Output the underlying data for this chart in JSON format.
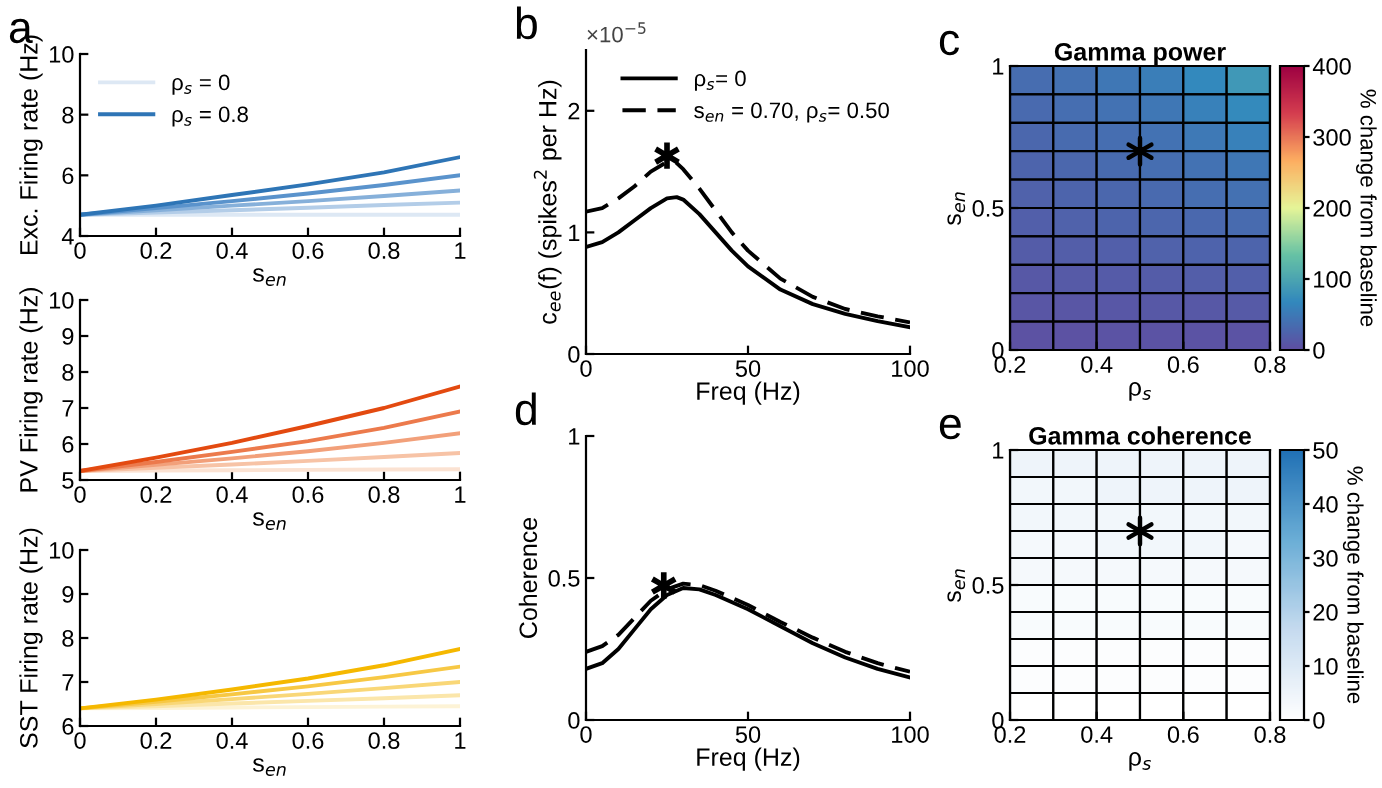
{
  "chart_data": [
    {
      "type": "line",
      "annotations": [
        "a"
      ],
      "xlabel": "s$_{en}$",
      "ylabel": "Exc. Firing rate (Hz)",
      "x": [
        0,
        0.2,
        0.4,
        0.6,
        0.8,
        1
      ],
      "xlim": [
        0,
        1
      ],
      "ylim": [
        4,
        10
      ],
      "xticks": [
        0,
        0.2,
        0.4,
        0.6,
        0.8,
        1
      ],
      "yticks": [
        4,
        6,
        8,
        10
      ],
      "legend": "top left",
      "series": [
        {
          "name": "ρ$_{s}$ = 0",
          "color": "#dde8f4",
          "values": [
            4.7,
            4.7,
            4.7,
            4.7,
            4.7,
            4.7
          ]
        },
        {
          "color": "#b3cde8",
          "values": [
            4.7,
            4.77,
            4.85,
            4.93,
            5.02,
            5.1
          ]
        },
        {
          "color": "#86b0da",
          "values": [
            4.7,
            4.85,
            5.0,
            5.15,
            5.32,
            5.5
          ]
        },
        {
          "color": "#5a93cc",
          "values": [
            4.7,
            4.92,
            5.15,
            5.4,
            5.68,
            6.0
          ]
        },
        {
          "name": "ρ$_{s}$ = 0.8",
          "color": "#2e75b6",
          "values": [
            4.7,
            5.0,
            5.35,
            5.7,
            6.1,
            6.6
          ]
        }
      ]
    },
    {
      "type": "line",
      "xlabel": "s$_{en}$",
      "ylabel": "PV Firing rate (Hz)",
      "x": [
        0,
        0.2,
        0.4,
        0.6,
        0.8,
        1
      ],
      "xlim": [
        0,
        1
      ],
      "ylim": [
        5,
        10
      ],
      "xticks": [
        0,
        0.2,
        0.4,
        0.6,
        0.8,
        1
      ],
      "yticks": [
        5,
        6,
        7,
        8,
        9,
        10
      ],
      "series": [
        {
          "color": "#fbe2d2",
          "values": [
            5.25,
            5.26,
            5.27,
            5.28,
            5.29,
            5.3
          ]
        },
        {
          "color": "#f7c3a6",
          "values": [
            5.25,
            5.34,
            5.43,
            5.53,
            5.64,
            5.75
          ]
        },
        {
          "color": "#f2a07a",
          "values": [
            5.25,
            5.42,
            5.6,
            5.8,
            6.03,
            6.3
          ]
        },
        {
          "color": "#ec7a4c",
          "values": [
            5.25,
            5.5,
            5.78,
            6.08,
            6.45,
            6.9
          ]
        },
        {
          "color": "#e34a10",
          "values": [
            5.25,
            5.62,
            6.03,
            6.5,
            7.0,
            7.6
          ]
        }
      ]
    },
    {
      "type": "line",
      "xlabel": "s$_{en}$",
      "ylabel": "SST Firing rate (Hz)",
      "x": [
        0,
        0.2,
        0.4,
        0.6,
        0.8,
        1
      ],
      "xlim": [
        0,
        1
      ],
      "ylim": [
        6,
        10
      ],
      "xticks": [
        0,
        0.2,
        0.4,
        0.6,
        0.8,
        1
      ],
      "yticks": [
        6,
        7,
        8,
        9,
        10
      ],
      "series": [
        {
          "color": "#fdf3d6",
          "values": [
            6.4,
            6.41,
            6.42,
            6.43,
            6.44,
            6.45
          ]
        },
        {
          "color": "#fbe6aa",
          "values": [
            6.4,
            6.45,
            6.51,
            6.57,
            6.63,
            6.7
          ]
        },
        {
          "color": "#f9d777",
          "values": [
            6.4,
            6.5,
            6.61,
            6.73,
            6.86,
            7.0
          ]
        },
        {
          "color": "#f7c844",
          "values": [
            6.4,
            6.55,
            6.72,
            6.9,
            7.11,
            7.35
          ]
        },
        {
          "color": "#f5b800",
          "values": [
            6.4,
            6.6,
            6.83,
            7.08,
            7.38,
            7.75
          ]
        }
      ]
    },
    {
      "type": "line",
      "annotations": [
        "b",
        "×10$^{−5}$",
        {
          "text": "✱",
          "x": 25,
          "y": 1.6
        }
      ],
      "xlabel": "Freq (Hz)",
      "ylabel": "c$_{ee}$(f) (spikes$^{2}$ per Hz)",
      "x": [
        0,
        5,
        10,
        15,
        20,
        25,
        28,
        30,
        35,
        40,
        45,
        50,
        60,
        70,
        80,
        90,
        100
      ],
      "xlim": [
        0,
        100
      ],
      "ylim": [
        0,
        2.5
      ],
      "xticks": [
        0,
        50,
        100
      ],
      "yticks": [
        0,
        1,
        2
      ],
      "legend": "top right",
      "series": [
        {
          "name": "ρ$_{s}$= 0",
          "color": "#000000",
          "line_style": "solid",
          "values": [
            0.88,
            0.92,
            1.0,
            1.1,
            1.2,
            1.28,
            1.29,
            1.27,
            1.15,
            1.0,
            0.85,
            0.72,
            0.53,
            0.41,
            0.33,
            0.27,
            0.22
          ]
        },
        {
          "name": "s$_{en}$ = 0.70, ρ$_{s}$= 0.50",
          "color": "#000000",
          "line_style": "dashed",
          "values": [
            1.17,
            1.2,
            1.28,
            1.38,
            1.5,
            1.58,
            1.57,
            1.52,
            1.36,
            1.18,
            1.0,
            0.85,
            0.62,
            0.47,
            0.37,
            0.31,
            0.26
          ]
        }
      ]
    },
    {
      "type": "line",
      "annotations": [
        "d",
        {
          "text": "✱",
          "x": 24,
          "y": 0.46
        }
      ],
      "xlabel": "Freq (Hz)",
      "ylabel": "Coherence",
      "x": [
        0,
        5,
        10,
        15,
        20,
        25,
        30,
        35,
        40,
        50,
        60,
        70,
        80,
        90,
        100
      ],
      "xlim": [
        0,
        100
      ],
      "ylim": [
        0,
        1
      ],
      "xticks": [
        0,
        50,
        100
      ],
      "yticks": [
        0,
        0.5,
        1
      ],
      "series": [
        {
          "color": "#000000",
          "line_style": "solid",
          "values": [
            0.18,
            0.2,
            0.25,
            0.32,
            0.39,
            0.44,
            0.465,
            0.46,
            0.44,
            0.39,
            0.33,
            0.27,
            0.22,
            0.18,
            0.15
          ]
        },
        {
          "color": "#000000",
          "line_style": "dashed",
          "values": [
            0.24,
            0.26,
            0.3,
            0.36,
            0.42,
            0.46,
            0.48,
            0.475,
            0.455,
            0.405,
            0.345,
            0.29,
            0.24,
            0.2,
            0.17
          ]
        }
      ]
    },
    {
      "type": "heatmap",
      "annotations": [
        "c"
      ],
      "series": [
        {
          "type": "scatter",
          "x": [
            0.5
          ],
          "values": [
            0.7
          ],
          "color": "#000000",
          "marker": "cross"
        }
      ],
      "title": "Gamma power",
      "xlabel": "ρ$_{s}$",
      "ylabel": "s$_{en}$",
      "clabel": "% change from baseline",
      "xlim": [
        0.2,
        0.8
      ],
      "ylim": [
        0,
        1
      ],
      "xticks": [
        0.2,
        0.4,
        0.6,
        0.8
      ],
      "yticks": [
        0,
        0.5,
        1
      ],
      "clim": [
        0,
        400
      ],
      "cticks": [
        0,
        100,
        200,
        300,
        400
      ],
      "colors": [
        "#5e4fa2",
        "#3288bd",
        "#66c2a5",
        "#e6f598",
        "#fdae61",
        "#d53e4f",
        "#9e0142"
      ],
      "cells": [
        [
          35,
          40,
          47,
          55,
          68,
          85
        ],
        [
          32,
          36,
          42,
          48,
          58,
          70
        ],
        [
          29,
          33,
          37,
          42,
          49,
          58
        ],
        [
          26,
          29,
          33,
          37,
          42,
          48
        ],
        [
          23,
          26,
          29,
          32,
          36,
          40
        ],
        [
          20,
          22,
          25,
          27,
          30,
          33
        ],
        [
          16,
          18,
          20,
          22,
          24,
          26
        ],
        [
          12,
          13,
          15,
          16,
          18,
          19
        ],
        [
          8,
          9,
          10,
          11,
          12,
          13
        ],
        [
          4,
          4,
          5,
          5,
          6,
          6
        ]
      ]
    },
    {
      "type": "heatmap",
      "annotations": [
        "e"
      ],
      "series": [
        {
          "type": "scatter",
          "x": [
            0.5
          ],
          "values": [
            0.7
          ],
          "color": "#000000",
          "marker": "cross"
        }
      ],
      "title": "Gamma coherence",
      "xlabel": "ρ$_{s}$",
      "ylabel": "s$_{en}$",
      "clabel": "% change from baseline",
      "xlim": [
        0.2,
        0.8
      ],
      "ylim": [
        0,
        1
      ],
      "xticks": [
        0.2,
        0.4,
        0.6,
        0.8
      ],
      "yticks": [
        0,
        0.5,
        1
      ],
      "clim": [
        0,
        50
      ],
      "cticks": [
        0,
        10,
        20,
        30,
        40,
        50
      ],
      "colors": [
        "#ffffff",
        "#c6dbef",
        "#6baed6",
        "#2171b5"
      ],
      "cells": [
        [
          5,
          5,
          5,
          5,
          5,
          5
        ],
        [
          4,
          4,
          5,
          5,
          5,
          5
        ],
        [
          4,
          4,
          4,
          4,
          4,
          4
        ],
        [
          3,
          3,
          4,
          4,
          4,
          3
        ],
        [
          3,
          3,
          3,
          3,
          3,
          3
        ],
        [
          2,
          2,
          2,
          2,
          2,
          2
        ],
        [
          2,
          2,
          2,
          2,
          2,
          2
        ],
        [
          1,
          1,
          1,
          1,
          1,
          1
        ],
        [
          1,
          1,
          1,
          1,
          1,
          1
        ],
        [
          0,
          0,
          0,
          0,
          0,
          0
        ]
      ]
    }
  ]
}
